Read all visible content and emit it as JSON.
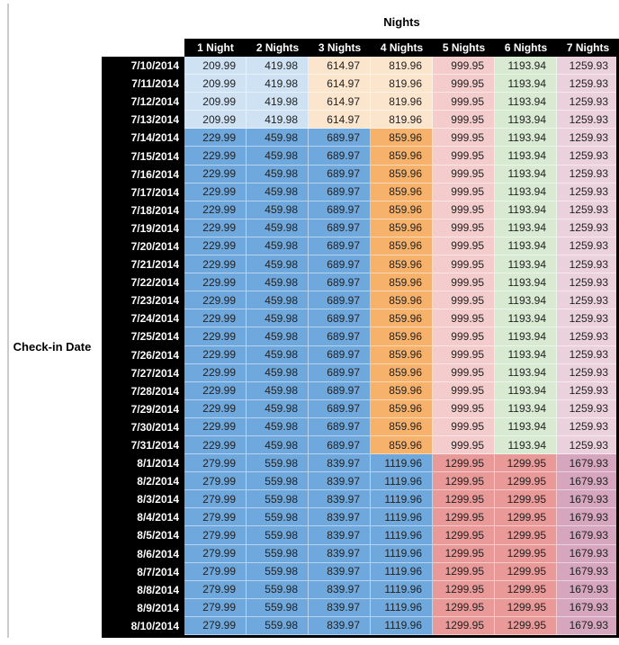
{
  "palette": {
    "lightBlue": "#CFE2F3",
    "medBlue": "#6FA8DC",
    "lightPeach": "#FCE5CD",
    "medOrange": "#F6B26B",
    "lightRed": "#F4CCCC",
    "salmon": "#EA9999",
    "lightGreen": "#D9EAD3",
    "lightPink": "#EAD1DC",
    "mauve": "#D5A6BD"
  },
  "color_groups": {
    "early": [
      "lightBlue",
      "lightBlue",
      "lightPeach",
      "lightPeach",
      "lightRed",
      "lightGreen",
      "lightPink"
    ],
    "mid": [
      "medBlue",
      "medBlue",
      "medBlue",
      "medOrange",
      "lightRed",
      "lightGreen",
      "lightPink"
    ],
    "late": [
      "medBlue",
      "medBlue",
      "medBlue",
      "medBlue",
      "salmon",
      "salmon",
      "mauve"
    ]
  },
  "chart_data": {
    "type": "table",
    "title": "Nights",
    "row_label": "Check-in Date",
    "columns": [
      "1 Night",
      "2 Nights",
      "3 Nights",
      "4 Nights",
      "5 Nights",
      "6 Nights",
      "7 Nights"
    ],
    "rows": [
      {
        "date": "7/10/2014",
        "group": "early",
        "values": [
          209.99,
          419.98,
          614.97,
          819.96,
          999.95,
          1193.94,
          1259.93
        ]
      },
      {
        "date": "7/11/2014",
        "group": "early",
        "values": [
          209.99,
          419.98,
          614.97,
          819.96,
          999.95,
          1193.94,
          1259.93
        ]
      },
      {
        "date": "7/12/2014",
        "group": "early",
        "values": [
          209.99,
          419.98,
          614.97,
          819.96,
          999.95,
          1193.94,
          1259.93
        ]
      },
      {
        "date": "7/13/2014",
        "group": "early",
        "values": [
          209.99,
          419.98,
          614.97,
          819.96,
          999.95,
          1193.94,
          1259.93
        ]
      },
      {
        "date": "7/14/2014",
        "group": "mid",
        "values": [
          229.99,
          459.98,
          689.97,
          859.96,
          999.95,
          1193.94,
          1259.93
        ]
      },
      {
        "date": "7/15/2014",
        "group": "mid",
        "values": [
          229.99,
          459.98,
          689.97,
          859.96,
          999.95,
          1193.94,
          1259.93
        ]
      },
      {
        "date": "7/16/2014",
        "group": "mid",
        "values": [
          229.99,
          459.98,
          689.97,
          859.96,
          999.95,
          1193.94,
          1259.93
        ]
      },
      {
        "date": "7/17/2014",
        "group": "mid",
        "values": [
          229.99,
          459.98,
          689.97,
          859.96,
          999.95,
          1193.94,
          1259.93
        ]
      },
      {
        "date": "7/18/2014",
        "group": "mid",
        "values": [
          229.99,
          459.98,
          689.97,
          859.96,
          999.95,
          1193.94,
          1259.93
        ]
      },
      {
        "date": "7/19/2014",
        "group": "mid",
        "values": [
          229.99,
          459.98,
          689.97,
          859.96,
          999.95,
          1193.94,
          1259.93
        ]
      },
      {
        "date": "7/20/2014",
        "group": "mid",
        "values": [
          229.99,
          459.98,
          689.97,
          859.96,
          999.95,
          1193.94,
          1259.93
        ]
      },
      {
        "date": "7/21/2014",
        "group": "mid",
        "values": [
          229.99,
          459.98,
          689.97,
          859.96,
          999.95,
          1193.94,
          1259.93
        ]
      },
      {
        "date": "7/22/2014",
        "group": "mid",
        "values": [
          229.99,
          459.98,
          689.97,
          859.96,
          999.95,
          1193.94,
          1259.93
        ]
      },
      {
        "date": "7/23/2014",
        "group": "mid",
        "values": [
          229.99,
          459.98,
          689.97,
          859.96,
          999.95,
          1193.94,
          1259.93
        ]
      },
      {
        "date": "7/24/2014",
        "group": "mid",
        "values": [
          229.99,
          459.98,
          689.97,
          859.96,
          999.95,
          1193.94,
          1259.93
        ]
      },
      {
        "date": "7/25/2014",
        "group": "mid",
        "values": [
          229.99,
          459.98,
          689.97,
          859.96,
          999.95,
          1193.94,
          1259.93
        ]
      },
      {
        "date": "7/26/2014",
        "group": "mid",
        "values": [
          229.99,
          459.98,
          689.97,
          859.96,
          999.95,
          1193.94,
          1259.93
        ]
      },
      {
        "date": "7/27/2014",
        "group": "mid",
        "values": [
          229.99,
          459.98,
          689.97,
          859.96,
          999.95,
          1193.94,
          1259.93
        ]
      },
      {
        "date": "7/28/2014",
        "group": "mid",
        "values": [
          229.99,
          459.98,
          689.97,
          859.96,
          999.95,
          1193.94,
          1259.93
        ]
      },
      {
        "date": "7/29/2014",
        "group": "mid",
        "values": [
          229.99,
          459.98,
          689.97,
          859.96,
          999.95,
          1193.94,
          1259.93
        ]
      },
      {
        "date": "7/30/2014",
        "group": "mid",
        "values": [
          229.99,
          459.98,
          689.97,
          859.96,
          999.95,
          1193.94,
          1259.93
        ]
      },
      {
        "date": "7/31/2014",
        "group": "mid",
        "values": [
          229.99,
          459.98,
          689.97,
          859.96,
          999.95,
          1193.94,
          1259.93
        ]
      },
      {
        "date": "8/1/2014",
        "group": "late",
        "values": [
          279.99,
          559.98,
          839.97,
          1119.96,
          1299.95,
          1299.95,
          1679.93
        ]
      },
      {
        "date": "8/2/2014",
        "group": "late",
        "values": [
          279.99,
          559.98,
          839.97,
          1119.96,
          1299.95,
          1299.95,
          1679.93
        ]
      },
      {
        "date": "8/3/2014",
        "group": "late",
        "values": [
          279.99,
          559.98,
          839.97,
          1119.96,
          1299.95,
          1299.95,
          1679.93
        ]
      },
      {
        "date": "8/4/2014",
        "group": "late",
        "values": [
          279.99,
          559.98,
          839.97,
          1119.96,
          1299.95,
          1299.95,
          1679.93
        ]
      },
      {
        "date": "8/5/2014",
        "group": "late",
        "values": [
          279.99,
          559.98,
          839.97,
          1119.96,
          1299.95,
          1299.95,
          1679.93
        ]
      },
      {
        "date": "8/6/2014",
        "group": "late",
        "values": [
          279.99,
          559.98,
          839.97,
          1119.96,
          1299.95,
          1299.95,
          1679.93
        ]
      },
      {
        "date": "8/7/2014",
        "group": "late",
        "values": [
          279.99,
          559.98,
          839.97,
          1119.96,
          1299.95,
          1299.95,
          1679.93
        ]
      },
      {
        "date": "8/8/2014",
        "group": "late",
        "values": [
          279.99,
          559.98,
          839.97,
          1119.96,
          1299.95,
          1299.95,
          1679.93
        ]
      },
      {
        "date": "8/9/2014",
        "group": "late",
        "values": [
          279.99,
          559.98,
          839.97,
          1119.96,
          1299.95,
          1299.95,
          1679.93
        ]
      },
      {
        "date": "8/10/2014",
        "group": "late",
        "values": [
          279.99,
          559.98,
          839.97,
          1119.96,
          1299.95,
          1299.95,
          1679.93
        ]
      }
    ]
  }
}
